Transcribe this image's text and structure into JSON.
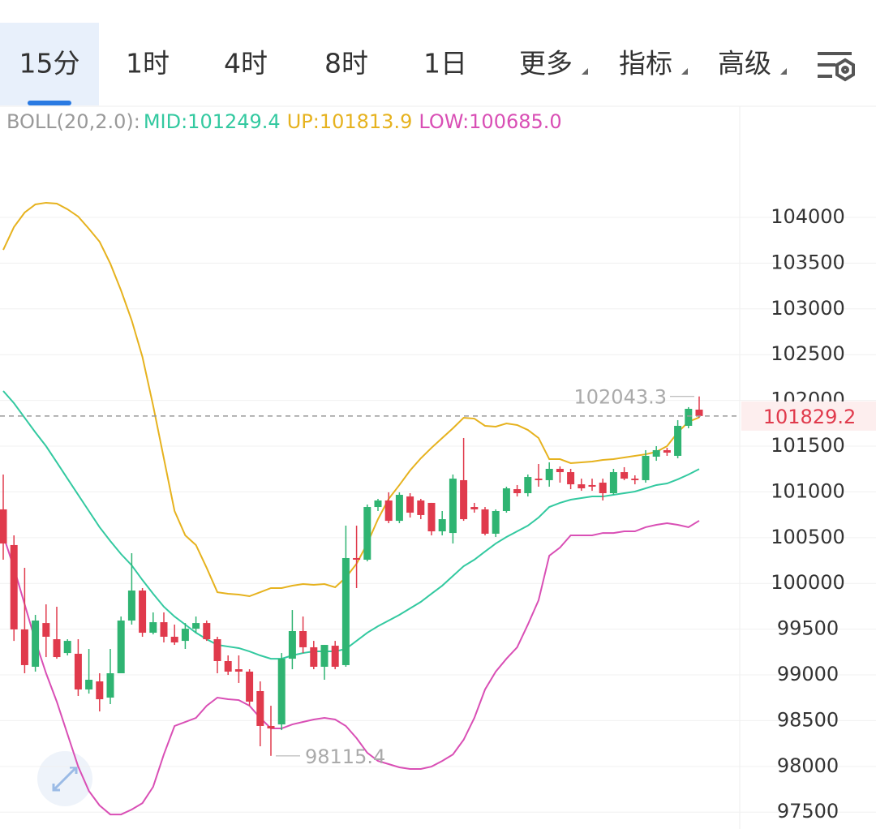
{
  "tabs": {
    "items": [
      "15分",
      "1时",
      "4时",
      "8时",
      "1日",
      "更多",
      "指标",
      "高级"
    ]
  },
  "chart_data": {
    "type": "candlestick",
    "indicator": "BOLL(20,2.0):",
    "ylim": [
      97316,
      104913
    ],
    "yticks": [
      97500,
      98000,
      98500,
      99000,
      99500,
      100000,
      100500,
      101000,
      101500,
      102000,
      102500,
      103000,
      103500,
      104000
    ],
    "grid": true,
    "up_color": "#2fb472",
    "down_color": "#e03a4c",
    "open": [
      100809,
      100419,
      99497,
      99089,
      99567,
      99390,
      99239,
      99231,
      98841,
      98929,
      98752,
      99018,
      99594,
      99922,
      99461,
      99576,
      99417,
      99372,
      99505,
      99567,
      99390,
      99151,
      99062,
      99036,
      98823,
      98442,
      98459,
      99177,
      99479,
      99302,
      99089,
      99319,
      99107,
      100277,
      100259,
      100835,
      100906,
      100684,
      100950,
      100906,
      100880,
      100569,
      100551,
      101128,
      100835,
      100809,
      100543,
      100791,
      101030,
      100986,
      101145,
      101128,
      101252,
      101216,
      101083,
      101075,
      101101,
      100986,
      101216,
      101145,
      101128,
      101385,
      101456,
      101394,
      101722,
      101899
    ],
    "high": [
      101190,
      100525,
      100170,
      99656,
      99771,
      99745,
      99390,
      99390,
      99284,
      99018,
      99284,
      99638,
      100330,
      99949,
      99683,
      99683,
      99550,
      99567,
      99638,
      99594,
      99417,
      99213,
      99213,
      99062,
      98929,
      98663,
      99239,
      99709,
      99638,
      99372,
      99328,
      99372,
      100631,
      100631,
      100862,
      100924,
      100995,
      100995,
      100986,
      100924,
      100880,
      100791,
      101190,
      101589,
      100880,
      100835,
      100809,
      101057,
      101075,
      101190,
      101305,
      101323,
      101278,
      101252,
      101145,
      101145,
      101145,
      101252,
      101270,
      101181,
      101456,
      101500,
      101482,
      101784,
      101926,
      102043.3
    ],
    "low": [
      100259,
      99372,
      99018,
      99036,
      99195,
      99177,
      99213,
      98770,
      98796,
      98601,
      98681,
      99018,
      99550,
      99417,
      99443,
      99355,
      99328,
      99284,
      99461,
      99372,
      99018,
      99000,
      98912,
      98663,
      98220,
      98115.4,
      98397,
      99062,
      99239,
      99062,
      98947,
      99062,
      99089,
      99949,
      100241,
      100791,
      100658,
      100658,
      100720,
      100702,
      100525,
      100525,
      100436,
      100684,
      100773,
      100525,
      100507,
      100773,
      100950,
      100950,
      101057,
      101057,
      101101,
      101030,
      101012,
      101012,
      100906,
      100968,
      101128,
      101083,
      101101,
      101340,
      101394,
      101367,
      101695,
      101810
    ],
    "close": [
      100436,
      99497,
      99107,
      99594,
      99417,
      99195,
      99372,
      98841,
      98947,
      98734,
      99018,
      99594,
      99922,
      99461,
      99576,
      99417,
      99355,
      99505,
      99567,
      99390,
      99151,
      99036,
      99036,
      98708,
      98442,
      98415,
      99177,
      99479,
      99302,
      99089,
      99328,
      99089,
      100277,
      100259,
      100835,
      100906,
      100684,
      100968,
      100773,
      100747,
      100569,
      100702,
      101145,
      100702,
      100809,
      100543,
      100791,
      101039,
      100986,
      101163,
      101128,
      101252,
      101216,
      101083,
      101039,
      101057,
      100986,
      101216,
      101145,
      101128,
      101394,
      101456,
      101429,
      101722,
      101908,
      101829.2
    ],
    "series": [
      {
        "name": "MID:101249.4",
        "color": "#33c9a0",
        "values": [
          102103,
          101970,
          101810,
          101651,
          101500,
          101323,
          101145,
          100968,
          100791,
          100614,
          100463,
          100321,
          100197,
          100037,
          99887,
          99745,
          99638,
          99550,
          99461,
          99390,
          99328,
          99310,
          99293,
          99257,
          99213,
          99177,
          99177,
          99213,
          99239,
          99257,
          99257,
          99257,
          99284,
          99372,
          99461,
          99532,
          99594,
          99656,
          99727,
          99798,
          99887,
          99975,
          100082,
          100188,
          100259,
          100348,
          100436,
          100507,
          100569,
          100631,
          100720,
          100835,
          100880,
          100915,
          100933,
          100950,
          100950,
          100968,
          100986,
          101004,
          101039,
          101075,
          101092,
          101137,
          101190,
          101249.4
        ]
      },
      {
        "name": "UP:101813.9",
        "color": "#e6b21e",
        "values": [
          103645,
          103894,
          104053,
          104142,
          104160,
          104151,
          104089,
          104009,
          103876,
          103734,
          103495,
          103202,
          102874,
          102475,
          101943,
          101367,
          100791,
          100525,
          100419,
          100170,
          99904,
          99887,
          99878,
          99860,
          99904,
          99949,
          99949,
          99975,
          99993,
          99984,
          99993,
          99958,
          100064,
          100215,
          100436,
          100702,
          100924,
          101075,
          101234,
          101367,
          101482,
          101589,
          101695,
          101810,
          101801,
          101722,
          101713,
          101748,
          101731,
          101677,
          101589,
          101358,
          101358,
          101314,
          101323,
          101332,
          101349,
          101358,
          101376,
          101394,
          101411,
          101438,
          101500,
          101651,
          101766,
          101813.9
        ]
      },
      {
        "name": "LOW:100685.0",
        "color": "#d94fb5",
        "values": [
          100525,
          100170,
          99771,
          99372,
          99018,
          98708,
          98353,
          97998,
          97732,
          97573,
          97475,
          97475,
          97529,
          97599,
          97777,
          98131,
          98442,
          98486,
          98530,
          98663,
          98752,
          98734,
          98725,
          98663,
          98530,
          98415,
          98415,
          98459,
          98486,
          98513,
          98530,
          98513,
          98442,
          98309,
          98149,
          98060,
          98025,
          97990,
          97972,
          97972,
          97998,
          98060,
          98131,
          98291,
          98530,
          98841,
          99036,
          99177,
          99302,
          99550,
          99816,
          100303,
          100392,
          100525,
          100525,
          100525,
          100551,
          100551,
          100569,
          100569,
          100614,
          100640,
          100658,
          100640,
          100614,
          100685.0
        ]
      }
    ],
    "annotations": [
      {
        "label": "102043.3",
        "value": 102043.3,
        "kind": "high"
      },
      {
        "label": "98115.4",
        "value": 98115.4,
        "kind": "low"
      }
    ],
    "last_price": {
      "label": "101829.2",
      "value": 101829.2
    }
  }
}
